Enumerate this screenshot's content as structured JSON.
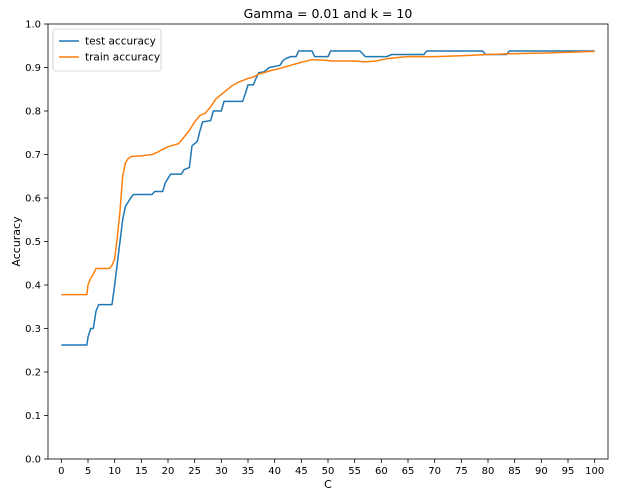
{
  "chart_data": {
    "type": "line",
    "title": "Gamma = 0.01 and k = 10",
    "xlabel": "C",
    "ylabel": "Accuracy",
    "xlim": [
      -2.5,
      102.5
    ],
    "ylim": [
      0.0,
      1.0
    ],
    "xticks": [
      0,
      5,
      10,
      15,
      20,
      25,
      30,
      35,
      40,
      45,
      50,
      55,
      60,
      65,
      70,
      75,
      80,
      85,
      90,
      95,
      100
    ],
    "xtick_labels": [
      "0",
      "5",
      "10",
      "15",
      "20",
      "25",
      "30",
      "35",
      "40",
      "45",
      "50",
      "55",
      "60",
      "65",
      "70",
      "75",
      "80",
      "85",
      "90",
      "95",
      "100"
    ],
    "yticks": [
      0.0,
      0.1,
      0.2,
      0.3,
      0.4,
      0.5,
      0.6,
      0.7,
      0.8,
      0.9,
      1.0
    ],
    "ytick_labels": [
      "0.0",
      "0.1",
      "0.2",
      "0.3",
      "0.4",
      "0.5",
      "0.6",
      "0.7",
      "0.8",
      "0.9",
      "1.0"
    ],
    "grid": false,
    "legend_position": "top-left",
    "series": [
      {
        "name": "test accuracy",
        "color": "#1f77b4",
        "points": [
          [
            0,
            0.262
          ],
          [
            4.8,
            0.262
          ],
          [
            5,
            0.28
          ],
          [
            5.5,
            0.3
          ],
          [
            6,
            0.3
          ],
          [
            6.5,
            0.34
          ],
          [
            7,
            0.355
          ],
          [
            9.5,
            0.355
          ],
          [
            10,
            0.4
          ],
          [
            10.5,
            0.45
          ],
          [
            11,
            0.5
          ],
          [
            11.5,
            0.55
          ],
          [
            12,
            0.58
          ],
          [
            12.5,
            0.59
          ],
          [
            13,
            0.6
          ],
          [
            13.5,
            0.608
          ],
          [
            17,
            0.608
          ],
          [
            17.5,
            0.615
          ],
          [
            19,
            0.615
          ],
          [
            19.5,
            0.635
          ],
          [
            20,
            0.645
          ],
          [
            20.5,
            0.655
          ],
          [
            22.5,
            0.655
          ],
          [
            23,
            0.665
          ],
          [
            24,
            0.67
          ],
          [
            24.5,
            0.72
          ],
          [
            25.5,
            0.73
          ],
          [
            26,
            0.755
          ],
          [
            26.5,
            0.775
          ],
          [
            28,
            0.778
          ],
          [
            28.5,
            0.8
          ],
          [
            30,
            0.8
          ],
          [
            30.5,
            0.822
          ],
          [
            34,
            0.822
          ],
          [
            34.5,
            0.84
          ],
          [
            35,
            0.86
          ],
          [
            36,
            0.86
          ],
          [
            36.5,
            0.875
          ],
          [
            37,
            0.888
          ],
          [
            38,
            0.89
          ],
          [
            38.5,
            0.895
          ],
          [
            39,
            0.9
          ],
          [
            41,
            0.905
          ],
          [
            41.5,
            0.915
          ],
          [
            42,
            0.92
          ],
          [
            43,
            0.925
          ],
          [
            44,
            0.925
          ],
          [
            44.5,
            0.938
          ],
          [
            47,
            0.938
          ],
          [
            47.5,
            0.925
          ],
          [
            50,
            0.925
          ],
          [
            50.5,
            0.938
          ],
          [
            56,
            0.938
          ],
          [
            57,
            0.925
          ],
          [
            61,
            0.925
          ],
          [
            62,
            0.93
          ],
          [
            68,
            0.93
          ],
          [
            68.5,
            0.938
          ],
          [
            79,
            0.938
          ],
          [
            79.5,
            0.93
          ],
          [
            83.5,
            0.93
          ],
          [
            84,
            0.938
          ],
          [
            100,
            0.938
          ]
        ]
      },
      {
        "name": "train accuracy",
        "color": "#ff7f0e",
        "points": [
          [
            0,
            0.378
          ],
          [
            4.8,
            0.378
          ],
          [
            5,
            0.4
          ],
          [
            5.5,
            0.415
          ],
          [
            6,
            0.425
          ],
          [
            6.5,
            0.438
          ],
          [
            9,
            0.438
          ],
          [
            9.5,
            0.445
          ],
          [
            10,
            0.46
          ],
          [
            10.5,
            0.51
          ],
          [
            11,
            0.57
          ],
          [
            11.5,
            0.65
          ],
          [
            12,
            0.68
          ],
          [
            12.5,
            0.69
          ],
          [
            13,
            0.695
          ],
          [
            15,
            0.697
          ],
          [
            17,
            0.7
          ],
          [
            18,
            0.705
          ],
          [
            19,
            0.712
          ],
          [
            20,
            0.718
          ],
          [
            22,
            0.725
          ],
          [
            23,
            0.74
          ],
          [
            24,
            0.755
          ],
          [
            25,
            0.775
          ],
          [
            26,
            0.79
          ],
          [
            27,
            0.795
          ],
          [
            28,
            0.81
          ],
          [
            29,
            0.828
          ],
          [
            30,
            0.838
          ],
          [
            31,
            0.848
          ],
          [
            32,
            0.858
          ],
          [
            33,
            0.865
          ],
          [
            34,
            0.87
          ],
          [
            35,
            0.875
          ],
          [
            36,
            0.878
          ],
          [
            37,
            0.885
          ],
          [
            38,
            0.888
          ],
          [
            39,
            0.892
          ],
          [
            40,
            0.895
          ],
          [
            41,
            0.898
          ],
          [
            43,
            0.905
          ],
          [
            45,
            0.912
          ],
          [
            47,
            0.918
          ],
          [
            49,
            0.917
          ],
          [
            51,
            0.915
          ],
          [
            55,
            0.915
          ],
          [
            57,
            0.913
          ],
          [
            59,
            0.915
          ],
          [
            61,
            0.92
          ],
          [
            63,
            0.923
          ],
          [
            65,
            0.925
          ],
          [
            70,
            0.925
          ],
          [
            75,
            0.927
          ],
          [
            80,
            0.93
          ],
          [
            85,
            0.932
          ],
          [
            90,
            0.933
          ],
          [
            95,
            0.935
          ],
          [
            100,
            0.937
          ]
        ]
      }
    ]
  }
}
